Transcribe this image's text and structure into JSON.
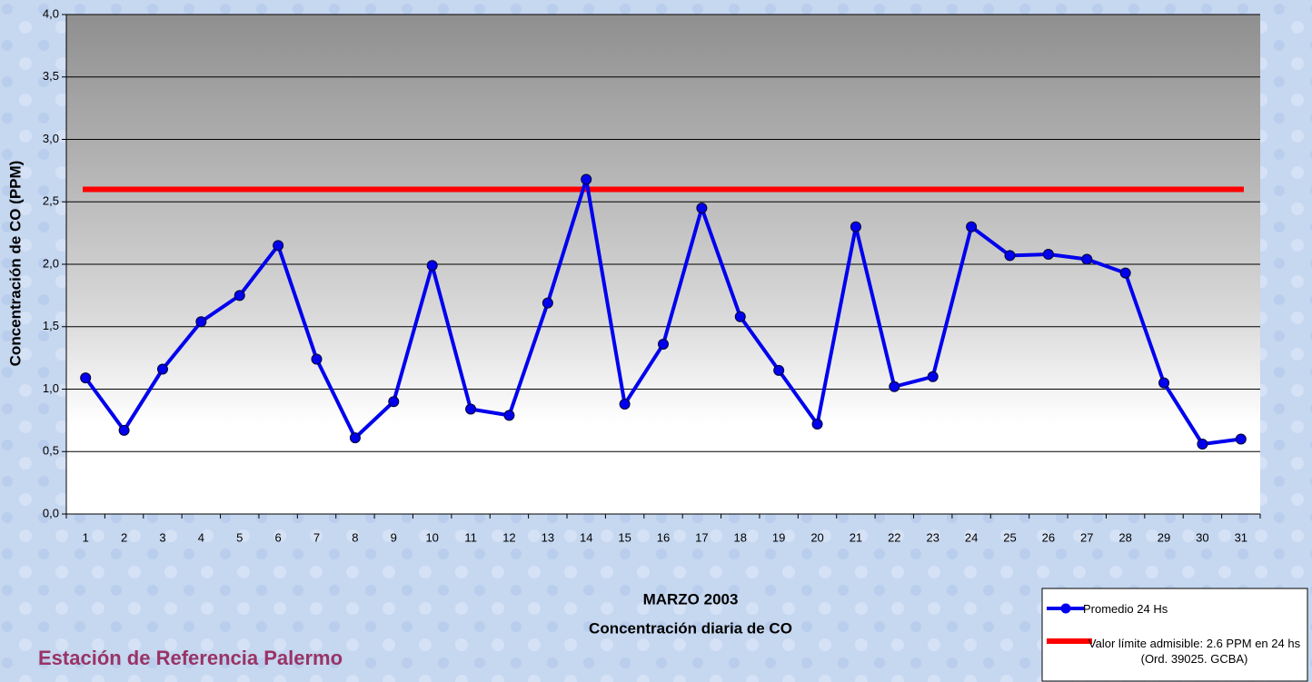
{
  "chart_data": {
    "type": "line",
    "categories": [
      "1",
      "2",
      "3",
      "4",
      "5",
      "6",
      "7",
      "8",
      "9",
      "10",
      "11",
      "12",
      "13",
      "14",
      "15",
      "16",
      "17",
      "18",
      "19",
      "20",
      "21",
      "22",
      "23",
      "24",
      "25",
      "26",
      "27",
      "28",
      "29",
      "30",
      "31"
    ],
    "series": [
      {
        "name": "Promedio 24 Hs",
        "color": "#0000ee",
        "values": [
          1.09,
          0.67,
          1.16,
          1.54,
          1.75,
          2.15,
          1.24,
          0.61,
          0.9,
          1.99,
          0.84,
          0.79,
          1.69,
          2.68,
          0.88,
          1.36,
          2.45,
          1.58,
          1.15,
          0.72,
          2.3,
          1.02,
          1.1,
          2.3,
          2.07,
          2.08,
          2.04,
          1.93,
          1.05,
          0.56,
          0.6
        ]
      }
    ],
    "reference_line": {
      "name": "Valor límite admisible: 2.6 PPM en 24 hs (Ord. 39025. GCBA)",
      "value": 2.6,
      "color": "#ff0000"
    },
    "ylabel": "Concentración de CO (PPM)",
    "xlabel": [
      "MARZO 2003",
      "Concentración diaria de CO"
    ],
    "ylim": [
      0,
      4
    ],
    "yticks": [
      {
        "value": 0,
        "label": "0,0"
      },
      {
        "value": 0.5,
        "label": "0,5"
      },
      {
        "value": 1,
        "label": "1,0"
      },
      {
        "value": 1.5,
        "label": "1,5"
      },
      {
        "value": 2,
        "label": "2,0"
      },
      {
        "value": 2.5,
        "label": "2,5"
      },
      {
        "value": 3,
        "label": "3,0"
      },
      {
        "value": 3.5,
        "label": "3,5"
      },
      {
        "value": 4,
        "label": "4,0"
      }
    ],
    "grid": true,
    "legend": "bottom-right",
    "footer": "Estación de Referencia Palermo"
  }
}
